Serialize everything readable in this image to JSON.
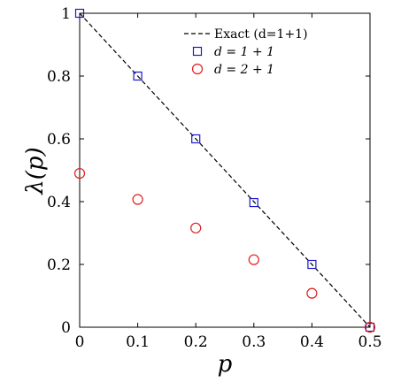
{
  "chart_data": {
    "type": "scatter",
    "title": "",
    "xlabel": "p",
    "ylabel": "λ(p)",
    "xlim": [
      0,
      0.5
    ],
    "ylim": [
      0,
      1
    ],
    "x_ticks": [
      0,
      0.1,
      0.2,
      0.3,
      0.4,
      0.5
    ],
    "y_ticks": [
      0,
      0.2,
      0.4,
      0.6,
      0.8,
      1
    ],
    "x_tick_labels": [
      "0",
      "0.1",
      "0.2",
      "0.3",
      "0.4",
      "0.5"
    ],
    "y_tick_labels": [
      "0",
      "0.2",
      "0.4",
      "0.6",
      "0.8",
      "1"
    ],
    "grid": false,
    "legend_position": "top-right",
    "series": [
      {
        "name": "Exact (d=1+1)",
        "style": "dashed-line",
        "color": "#000000",
        "x": [
          0,
          0.5
        ],
        "y": [
          1,
          0
        ]
      },
      {
        "name": "d = 1 + 1",
        "style": "square-marker",
        "color": "#1a1acc",
        "x": [
          0,
          0.1,
          0.2,
          0.3,
          0.4,
          0.5
        ],
        "y": [
          1.0,
          0.8,
          0.6,
          0.397,
          0.2,
          0.0
        ]
      },
      {
        "name": "d = 2 + 1",
        "style": "circle-marker",
        "color": "#e31a1c",
        "x": [
          0,
          0.1,
          0.2,
          0.3,
          0.4,
          0.5
        ],
        "y": [
          0.49,
          0.407,
          0.316,
          0.215,
          0.108,
          0.0
        ]
      }
    ]
  }
}
